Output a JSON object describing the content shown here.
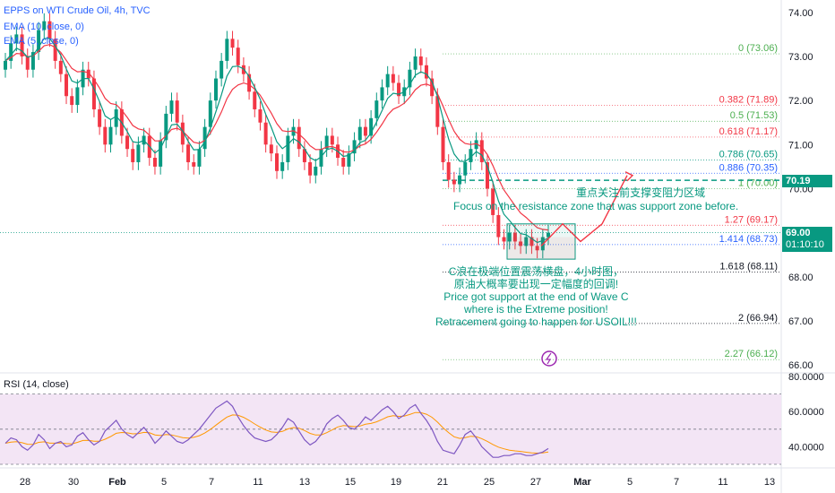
{
  "legend": {
    "title": "EPPS on WTI Crude Oil, 4h, TVC",
    "ema1": "EMA (10, close, 0)",
    "ema2": "EMA (5, close, 0)"
  },
  "rsi_legend": "RSI (14, close)",
  "price_axis": [
    "74.00",
    "73.00",
    "72.00",
    "71.00",
    "70.00",
    "69.00",
    "68.00",
    "67.00",
    "66.00"
  ],
  "rsi_axis": [
    "80.0000",
    "60.0000",
    "40.0000"
  ],
  "time_axis": [
    "28",
    "30",
    "Feb",
    "5",
    "7",
    "11",
    "13",
    "15",
    "19",
    "21",
    "25",
    "27",
    "Mar",
    "5",
    "7",
    "11",
    "13"
  ],
  "fib_levels": [
    {
      "ratio": "0",
      "price": 73.06,
      "label": "0 (73.06)",
      "color": "#4caf50"
    },
    {
      "ratio": "0.382",
      "price": 71.89,
      "label": "0.382 (71.89)",
      "color": "#f23645"
    },
    {
      "ratio": "0.5",
      "price": 71.53,
      "label": "0.5 (71.53)",
      "color": "#4caf50"
    },
    {
      "ratio": "0.618",
      "price": 71.17,
      "label": "0.618 (71.17)",
      "color": "#f23645"
    },
    {
      "ratio": "0.786",
      "price": 70.65,
      "label": "0.786 (70.65)",
      "color": "#089981"
    },
    {
      "ratio": "0.886",
      "price": 70.35,
      "label": "0.886 (70.35)",
      "color": "#2962ff"
    },
    {
      "ratio": "1",
      "price": 70.0,
      "label": "1 (70.00)",
      "color": "#4caf50"
    },
    {
      "ratio": "1.27",
      "price": 69.17,
      "label": "1.27 (69.17)",
      "color": "#f23645"
    },
    {
      "ratio": "1.414",
      "price": 68.73,
      "label": "1.414 (68.73)",
      "color": "#2962ff"
    },
    {
      "ratio": "1.618",
      "price": 68.11,
      "label": "1.618 (68.11)",
      "color": "#131722"
    },
    {
      "ratio": "2",
      "price": 66.94,
      "label": "2 (66.94)",
      "color": "#131722"
    },
    {
      "ratio": "2.27",
      "price": 66.12,
      "label": "2.27 (66.12)",
      "color": "#4caf50"
    }
  ],
  "resistance": {
    "price": 70.19,
    "label": "70.19"
  },
  "current": {
    "price": 69.0,
    "label": "69.00",
    "countdown": "01:10:10"
  },
  "notes": {
    "resistance_cn": "重点关注前支撑变阻力区域",
    "resistance_en": "Focus on the resistance zone that was support zone before.",
    "wave_cn1": "C浪在极端位置震荡横盘，4小时图，",
    "wave_cn2": "原油大概率要出现一定幅度的回调!",
    "wave_en1": "Price got support at the end of Wave C",
    "wave_en2": "where is the Extreme position!",
    "wave_en3": "Retracement going to happen for USOIL!!!"
  },
  "colors": {
    "up": "#089981",
    "down": "#f23645",
    "ema_fast": "#089981",
    "ema_slow": "#f23645",
    "rsi_line": "#7e57c2",
    "rsi_ma": "#ff9800",
    "rsi_bg": "#f3e5f5",
    "resistance": "#089981"
  },
  "chart_data": {
    "type": "candlestick",
    "price_ylim": [
      65.9,
      74.2
    ],
    "rsi_ylim": [
      30,
      80
    ],
    "close": [
      72.9,
      73.3,
      73.5,
      73.0,
      72.7,
      73.1,
      73.6,
      73.8,
      73.4,
      72.9,
      72.6,
      72.1,
      71.9,
      72.3,
      72.7,
      72.5,
      71.8,
      71.4,
      71.0,
      71.4,
      71.8,
      71.2,
      70.9,
      70.6,
      71.0,
      71.2,
      70.7,
      70.5,
      71.1,
      71.7,
      72.0,
      71.5,
      71.0,
      70.6,
      70.5,
      70.9,
      71.4,
      72.0,
      72.5,
      72.9,
      73.4,
      73.2,
      72.8,
      72.6,
      72.2,
      71.8,
      71.5,
      71.0,
      70.8,
      70.4,
      70.6,
      71.2,
      71.4,
      70.9,
      70.6,
      70.3,
      70.5,
      70.9,
      71.2,
      71.0,
      70.7,
      70.5,
      70.8,
      71.1,
      71.4,
      71.2,
      71.6,
      72.0,
      72.3,
      72.6,
      72.4,
      72.1,
      72.3,
      72.7,
      73.0,
      72.8,
      72.5,
      72.1,
      71.4,
      70.6,
      70.2,
      70.1,
      70.3,
      70.6,
      70.9,
      71.1,
      70.6,
      70.0,
      69.4,
      68.9,
      68.8,
      69.0,
      68.8,
      68.7,
      68.9,
      68.7,
      68.6,
      68.9,
      69.0
    ],
    "rsi": [
      42,
      45,
      44,
      40,
      38,
      41,
      47,
      44,
      39,
      42,
      43,
      40,
      41,
      46,
      48,
      44,
      41,
      43,
      49,
      52,
      55,
      50,
      47,
      45,
      48,
      51,
      47,
      42,
      45,
      49,
      46,
      43,
      42,
      44,
      47,
      50,
      54,
      58,
      62,
      64,
      66,
      63,
      57,
      52,
      48,
      45,
      44,
      43,
      44,
      47,
      51,
      56,
      54,
      49,
      44,
      41,
      43,
      47,
      53,
      56,
      58,
      55,
      51,
      50,
      53,
      57,
      55,
      58,
      61,
      63,
      60,
      56,
      58,
      62,
      64,
      59,
      55,
      50,
      43,
      38,
      37,
      36,
      41,
      47,
      49,
      45,
      40,
      37,
      34,
      34,
      35,
      35,
      36,
      36,
      35,
      35,
      36,
      37,
      39
    ]
  }
}
